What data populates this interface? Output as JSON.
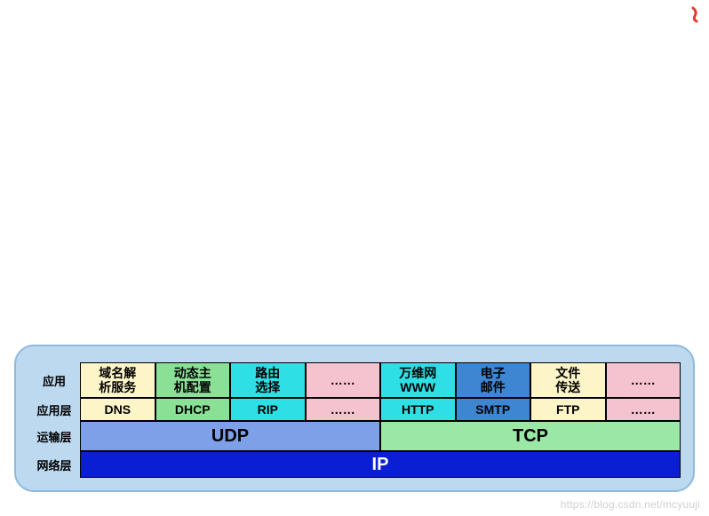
{
  "colors": {
    "page_bg": "#ffffff",
    "container_bg": "#bdd9ef",
    "container_border": "#8fb9dc",
    "cell_border": "#000000",
    "squiggle": "#e63a2e",
    "cream": "#fdf4c8",
    "green": "#8ae095",
    "cyan": "#2ee0e5",
    "pink": "#f5c3cf",
    "blue_mid": "#3f86d2",
    "udp": "#7da0e8",
    "tcp": "#9be8a6",
    "ip": "#0a1fd4",
    "ip_text": "#ffffff",
    "watermark": "#d0d0d0"
  },
  "labels": {
    "apps": "应用",
    "app_layer": "应用层",
    "transport_layer": "运输层",
    "network_layer": "网络层"
  },
  "apps_row": [
    {
      "text": "域名解\n析服务",
      "color_key": "cream"
    },
    {
      "text": "动态主\n机配置",
      "color_key": "green"
    },
    {
      "text": "路由\n选择",
      "color_key": "cyan"
    },
    {
      "text": "……",
      "color_key": "pink"
    },
    {
      "text": "万维网\nWWW",
      "color_key": "cyan"
    },
    {
      "text": "电子\n邮件",
      "color_key": "blue_mid"
    },
    {
      "text": "文件\n传送",
      "color_key": "cream"
    },
    {
      "text": "……",
      "color_key": "pink"
    }
  ],
  "protocols_row": [
    {
      "text": "DNS",
      "color_key": "cream"
    },
    {
      "text": "DHCP",
      "color_key": "green"
    },
    {
      "text": "RIP",
      "color_key": "cyan"
    },
    {
      "text": "……",
      "color_key": "pink"
    },
    {
      "text": "HTTP",
      "color_key": "cyan"
    },
    {
      "text": "SMTP",
      "color_key": "blue_mid"
    },
    {
      "text": "FTP",
      "color_key": "cream"
    },
    {
      "text": "……",
      "color_key": "pink"
    }
  ],
  "transport_row": [
    {
      "text": "UDP",
      "color_key": "udp"
    },
    {
      "text": "TCP",
      "color_key": "tcp"
    }
  ],
  "network_row": {
    "text": "IP",
    "color_key": "ip"
  },
  "watermark": "https://blog.csdn.net/mcyuuji"
}
